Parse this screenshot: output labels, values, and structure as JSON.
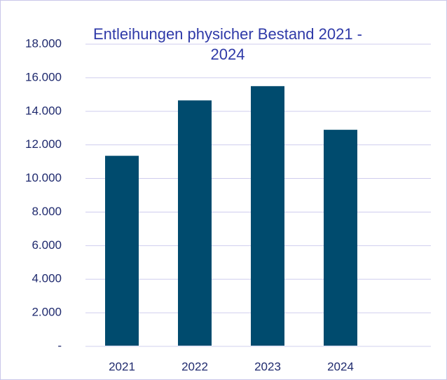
{
  "chart_data": {
    "type": "bar",
    "title": "Entleihungen physicher Bestand 2021 - 2024",
    "categories": [
      "2021",
      "2022",
      "2023",
      "2024"
    ],
    "values": [
      11350,
      14650,
      15500,
      12900
    ],
    "color": "#004b6e",
    "ylim": [
      0,
      18000
    ],
    "yticks": [
      {
        "value": 0,
        "label": "-"
      },
      {
        "value": 2000,
        "label": "2.000"
      },
      {
        "value": 4000,
        "label": "4.000"
      },
      {
        "value": 6000,
        "label": "6.000"
      },
      {
        "value": 8000,
        "label": "8.000"
      },
      {
        "value": 10000,
        "label": "10.000"
      },
      {
        "value": 12000,
        "label": "12.000"
      },
      {
        "value": 14000,
        "label": "14.000"
      },
      {
        "value": 16000,
        "label": "16.000"
      },
      {
        "value": 18000,
        "label": "18.000"
      }
    ],
    "grid": true
  }
}
